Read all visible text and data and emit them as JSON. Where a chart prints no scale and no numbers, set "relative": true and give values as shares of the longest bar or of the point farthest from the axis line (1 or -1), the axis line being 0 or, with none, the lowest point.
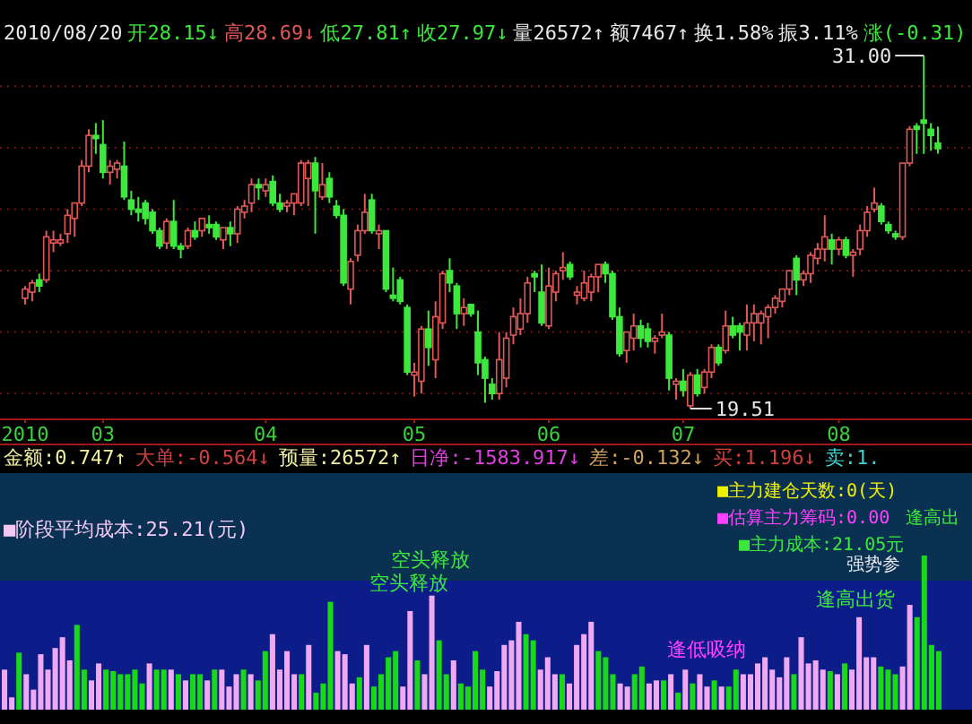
{
  "chart_data": [
    {
      "type": "candlestick",
      "categories": [
        "2010",
        null,
        null,
        null,
        null,
        null,
        null,
        null,
        null,
        null,
        null,
        "03",
        null,
        null,
        null,
        null,
        null,
        null,
        null,
        null,
        null,
        null,
        null,
        null,
        null,
        null,
        null,
        null,
        null,
        null,
        null,
        null,
        null,
        null,
        "04",
        null,
        null,
        null,
        null,
        null,
        null,
        null,
        null,
        null,
        null,
        null,
        null,
        null,
        null,
        null,
        null,
        null,
        null,
        null,
        null,
        "05",
        null,
        null,
        null,
        null,
        null,
        null,
        null,
        null,
        null,
        null,
        null,
        null,
        null,
        null,
        null,
        null,
        null,
        null,
        "06",
        null,
        null,
        null,
        null,
        null,
        null,
        null,
        null,
        null,
        null,
        null,
        null,
        null,
        null,
        null,
        null,
        null,
        null,
        "07",
        null,
        null,
        null,
        null,
        null,
        null,
        null,
        null,
        null,
        null,
        null,
        null,
        null,
        null,
        null,
        null,
        null,
        null,
        null,
        null,
        null,
        "08",
        null,
        null,
        null,
        null,
        null,
        null,
        null,
        null,
        null,
        null,
        null,
        null,
        null,
        null
      ],
      "ohlc": [
        [
          23.1,
          23.5,
          22.9,
          23.4
        ],
        [
          23.3,
          23.7,
          23.0,
          23.6
        ],
        [
          23.7,
          23.9,
          23.3,
          23.5
        ],
        [
          23.7,
          25.3,
          23.6,
          25.1
        ],
        [
          24.9,
          25.3,
          24.6,
          25.0
        ],
        [
          24.9,
          25.2,
          24.8,
          25.0
        ],
        [
          25.2,
          26.0,
          24.9,
          25.8
        ],
        [
          25.7,
          26.2,
          25.1,
          26.2
        ],
        [
          26.2,
          27.6,
          26.1,
          27.4
        ],
        [
          27.4,
          28.6,
          27.2,
          28.4
        ],
        [
          28.4,
          28.8,
          27.8,
          28.3
        ],
        [
          28.1,
          28.9,
          27.0,
          27.2
        ],
        [
          27.2,
          27.6,
          26.8,
          27.4
        ],
        [
          27.3,
          27.6,
          27.0,
          27.5
        ],
        [
          27.4,
          28.2,
          26.3,
          26.4
        ],
        [
          26.3,
          26.6,
          25.8,
          26.0
        ],
        [
          26.0,
          26.4,
          25.6,
          25.9
        ],
        [
          26.2,
          26.3,
          25.5,
          25.7
        ],
        [
          25.9,
          26.0,
          25.2,
          25.3
        ],
        [
          25.3,
          25.4,
          24.7,
          24.8
        ],
        [
          24.9,
          25.7,
          24.7,
          25.6
        ],
        [
          25.6,
          26.3,
          24.7,
          24.8
        ],
        [
          24.8,
          24.9,
          24.4,
          24.7
        ],
        [
          24.8,
          25.4,
          24.7,
          25.3
        ],
        [
          25.3,
          25.6,
          25.0,
          25.1
        ],
        [
          25.3,
          25.7,
          25.1,
          25.7
        ],
        [
          25.5,
          25.8,
          25.2,
          25.4
        ],
        [
          25.5,
          25.6,
          25.0,
          25.1
        ],
        [
          25.0,
          25.4,
          24.7,
          25.4
        ],
        [
          25.4,
          25.6,
          24.8,
          25.2
        ],
        [
          25.2,
          26.1,
          24.9,
          26.0
        ],
        [
          25.9,
          26.3,
          25.7,
          26.1
        ],
        [
          26.2,
          27.0,
          25.9,
          26.8
        ],
        [
          26.8,
          27.0,
          26.3,
          26.7
        ],
        [
          26.6,
          27.0,
          26.4,
          26.8
        ],
        [
          26.9,
          27.1,
          26.1,
          26.2
        ],
        [
          26.2,
          26.5,
          25.9,
          26.0
        ],
        [
          26.1,
          26.3,
          25.9,
          26.2
        ],
        [
          26.2,
          26.5,
          25.8,
          26.5
        ],
        [
          26.2,
          27.6,
          26.1,
          27.5
        ],
        [
          27.0,
          27.6,
          26.1,
          27.5
        ],
        [
          27.5,
          27.7,
          25.2,
          26.6
        ],
        [
          26.4,
          27.5,
          26.3,
          26.8
        ],
        [
          27.0,
          27.2,
          26.2,
          26.4
        ],
        [
          26.1,
          26.3,
          25.7,
          25.8
        ],
        [
          25.8,
          26.0,
          23.5,
          23.6
        ],
        [
          23.4,
          24.4,
          22.9,
          24.3
        ],
        [
          24.5,
          25.5,
          24.3,
          25.3
        ],
        [
          25.3,
          26.5,
          25.2,
          25.9
        ],
        [
          26.3,
          26.5,
          25.2,
          25.3
        ],
        [
          25.2,
          25.5,
          24.7,
          25.3
        ],
        [
          25.3,
          25.3,
          23.3,
          23.4
        ],
        [
          23.2,
          24.1,
          23.0,
          23.1
        ],
        [
          23.7,
          23.8,
          22.9,
          23.0
        ],
        [
          22.8,
          22.9,
          20.6,
          20.7
        ],
        [
          20.6,
          21.0,
          19.9,
          20.7
        ],
        [
          20.4,
          22.2,
          20.0,
          22.1
        ],
        [
          22.1,
          22.7,
          20.9,
          21.5
        ],
        [
          21.1,
          23.0,
          20.5,
          22.5
        ],
        [
          22.3,
          24.0,
          22.1,
          23.9
        ],
        [
          24.0,
          24.4,
          23.3,
          23.6
        ],
        [
          23.5,
          23.6,
          22.1,
          22.6
        ],
        [
          22.6,
          23.1,
          22.2,
          22.8
        ],
        [
          22.9,
          22.9,
          22.5,
          22.6
        ],
        [
          22.0,
          22.7,
          20.6,
          21.0
        ],
        [
          21.1,
          21.2,
          19.7,
          20.5
        ],
        [
          20.3,
          20.5,
          19.8,
          20.0
        ],
        [
          20.0,
          22.0,
          19.8,
          21.1
        ],
        [
          20.5,
          22.0,
          20.2,
          21.8
        ],
        [
          21.9,
          22.8,
          21.6,
          22.5
        ],
        [
          22.1,
          23.1,
          21.9,
          22.6
        ],
        [
          22.6,
          23.8,
          22.3,
          23.6
        ],
        [
          23.9,
          24.0,
          23.3,
          23.8
        ],
        [
          23.3,
          24.2,
          22.2,
          22.3
        ],
        [
          22.2,
          24.1,
          22.1,
          23.5
        ],
        [
          23.3,
          24.0,
          23.0,
          23.9
        ],
        [
          24.0,
          24.6,
          23.7,
          24.1
        ],
        [
          24.2,
          24.3,
          23.7,
          23.8
        ],
        [
          23.2,
          23.5,
          22.9,
          23.3
        ],
        [
          23.1,
          24.0,
          23.0,
          23.6
        ],
        [
          23.3,
          23.9,
          23.0,
          23.8
        ],
        [
          23.8,
          24.2,
          23.3,
          24.2
        ],
        [
          24.2,
          24.3,
          23.6,
          23.9
        ],
        [
          23.9,
          24.0,
          22.4,
          22.5
        ],
        [
          22.5,
          22.8,
          21.2,
          21.3
        ],
        [
          21.4,
          22.0,
          21.0,
          22.0
        ],
        [
          21.8,
          22.6,
          21.4,
          22.2
        ],
        [
          22.2,
          22.4,
          21.5,
          21.8
        ],
        [
          22.1,
          22.3,
          21.5,
          21.7
        ],
        [
          21.7,
          21.9,
          21.3,
          21.8
        ],
        [
          21.9,
          22.6,
          21.8,
          22.0
        ],
        [
          21.9,
          22.0,
          20.1,
          20.5
        ],
        [
          20.3,
          20.5,
          19.8,
          20.4
        ],
        [
          20.4,
          20.8,
          19.9,
          20.1
        ],
        [
          19.6,
          20.7,
          19.51,
          20.6
        ],
        [
          20.6,
          20.8,
          19.9,
          20.0
        ],
        [
          20.2,
          20.8,
          20.0,
          20.7
        ],
        [
          20.7,
          21.6,
          20.5,
          21.5
        ],
        [
          21.5,
          21.6,
          20.9,
          21.0
        ],
        [
          21.4,
          22.7,
          21.3,
          22.2
        ],
        [
          22.2,
          22.5,
          21.8,
          21.9
        ],
        [
          22.2,
          22.3,
          21.4,
          22.0
        ],
        [
          21.9,
          22.9,
          21.4,
          22.3
        ],
        [
          22.3,
          22.9,
          21.7,
          22.6
        ],
        [
          22.3,
          22.7,
          21.6,
          22.6
        ],
        [
          22.5,
          22.9,
          21.8,
          22.8
        ],
        [
          22.8,
          23.2,
          22.6,
          23.1
        ],
        [
          23.0,
          23.4,
          22.8,
          23.4
        ],
        [
          23.4,
          24.0,
          23.2,
          24.0
        ],
        [
          24.4,
          24.5,
          23.2,
          23.7
        ],
        [
          23.7,
          24.0,
          23.5,
          23.9
        ],
        [
          23.9,
          24.6,
          23.6,
          24.5
        ],
        [
          24.4,
          24.9,
          24.2,
          24.7
        ],
        [
          24.7,
          25.8,
          24.3,
          25.1
        ],
        [
          25.0,
          25.2,
          24.2,
          24.7
        ],
        [
          24.7,
          25.1,
          24.5,
          25.0
        ],
        [
          25.0,
          25.1,
          24.4,
          24.5
        ],
        [
          24.5,
          24.7,
          23.8,
          24.6
        ],
        [
          24.7,
          25.5,
          24.5,
          25.3
        ],
        [
          25.3,
          26.1,
          25.1,
          25.9
        ],
        [
          26.0,
          26.7,
          25.9,
          26.2
        ],
        [
          26.1,
          26.2,
          25.5,
          25.6
        ],
        [
          25.5,
          25.6,
          25.2,
          25.3
        ],
        [
          25.2,
          25.3,
          25.0,
          25.1
        ],
        [
          25.1,
          27.5,
          25.0,
          27.5
        ],
        [
          27.5,
          28.7,
          27.4,
          28.6
        ],
        [
          28.7,
          28.8,
          27.8,
          28.6
        ],
        [
          28.9,
          31.0,
          27.8,
          28.8
        ],
        [
          28.6,
          28.8,
          27.9,
          28.4
        ],
        [
          28.15,
          28.69,
          27.81,
          27.97
        ]
      ],
      "colors": [
        "#e05858",
        "#e05858",
        "#3ce83c",
        "#e05858",
        "#e05858",
        "#e05858",
        "#e05858",
        "#e05858",
        "#e05858",
        "#e05858",
        "#3ce83c",
        "#3ce83c",
        "#e05858",
        "#e05858",
        "#3ce83c",
        "#3ce83c",
        "#3ce83c",
        "#3ce83c",
        "#3ce83c",
        "#3ce83c",
        "#e05858",
        "#3ce83c",
        "#3ce83c",
        "#e05858",
        "#3ce83c",
        "#e05858",
        "#3ce83c",
        "#3ce83c",
        "#e05858",
        "#3ce83c",
        "#e05858",
        "#e05858",
        "#e05858",
        "#3ce83c",
        "#e05858",
        "#3ce83c",
        "#3ce83c",
        "#e05858",
        "#e05858",
        "#e05858",
        "#e05858",
        "#3ce83c",
        "#e05858",
        "#3ce83c",
        "#3ce83c",
        "#3ce83c",
        "#e05858",
        "#e05858",
        "#e05858",
        "#3ce83c",
        "#e05858",
        "#3ce83c",
        "#3ce83c",
        "#3ce83c",
        "#3ce83c",
        "#e05858",
        "#e05858",
        "#3ce83c",
        "#e05858",
        "#e05858",
        "#3ce83c",
        "#3ce83c",
        "#e05858",
        "#3ce83c",
        "#3ce83c",
        "#3ce83c",
        "#3ce83c",
        "#e05858",
        "#e05858",
        "#e05858",
        "#e05858",
        "#e05858",
        "#3ce83c",
        "#3ce83c",
        "#e05858",
        "#e05858",
        "#e05858",
        "#3ce83c",
        "#e05858",
        "#e05858",
        "#e05858",
        "#e05858",
        "#3ce83c",
        "#3ce83c",
        "#3ce83c",
        "#e05858",
        "#e05858",
        "#3ce83c",
        "#3ce83c",
        "#e05858",
        "#e05858",
        "#3ce83c",
        "#e05858",
        "#3ce83c",
        "#e05858",
        "#3ce83c",
        "#e05858",
        "#e05858",
        "#3ce83c",
        "#e05858",
        "#3ce83c",
        "#3ce83c",
        "#e05858",
        "#e05858",
        "#e05858",
        "#e05858",
        "#e05858",
        "#e05858",
        "#e05858",
        "#3ce83c",
        "#e05858",
        "#e05858",
        "#e05858",
        "#e05858",
        "#3ce83c",
        "#e05858",
        "#3ce83c",
        "#e05858",
        "#e05858",
        "#e05858",
        "#e05858",
        "#3ce83c",
        "#3ce83c",
        "#3ce83c",
        "#e05858",
        "#e05858",
        "#3ce83c",
        "#3ce83c",
        "#3ce83c",
        "#3ce83c"
      ],
      "yticks": [
        {
          "value": 20,
          "label": null
        },
        {
          "value": 22,
          "label": null
        },
        {
          "value": 24,
          "label": null
        },
        {
          "value": 26,
          "label": null
        },
        {
          "value": 28,
          "label": null
        },
        {
          "value": 30,
          "label": null
        }
      ],
      "grid": "y",
      "annotations": [
        "2010/08/20",
        "开28.15↓",
        "高28.69↓",
        "低27.81↑",
        "收27.97↓",
        "量26572↑",
        "额7467↑",
        "换1.58%",
        "振3.11%",
        "涨(-0.31)",
        "31.00",
        "19.51"
      ]
    },
    {
      "type": "bar",
      "relative": true,
      "categories": [
        null,
        null,
        null,
        null,
        null,
        null,
        null,
        null,
        null,
        null,
        null,
        null,
        null,
        null,
        null,
        null,
        null,
        null,
        null,
        null,
        null,
        null,
        null,
        null,
        null,
        null,
        null,
        null,
        null,
        null,
        null,
        null,
        null,
        null,
        null,
        null,
        null,
        null,
        null,
        null,
        null,
        null,
        null,
        null,
        null,
        null,
        null,
        null,
        null,
        null,
        null,
        null,
        null,
        null,
        null,
        null,
        null,
        null,
        null,
        null,
        null,
        null,
        null,
        null,
        null,
        null,
        null,
        null,
        null,
        null,
        null,
        null,
        null,
        null,
        null,
        null,
        null,
        null,
        null,
        null,
        null,
        null,
        null,
        null,
        null,
        null,
        null,
        null,
        null,
        null,
        null,
        null,
        null,
        null,
        null,
        null,
        null,
        null,
        null,
        null,
        null,
        null,
        null,
        null,
        null,
        null,
        null,
        null,
        null,
        null,
        null,
        null,
        null,
        null,
        null,
        null,
        null,
        null,
        null,
        null,
        null,
        null,
        null,
        null,
        null,
        null,
        null,
        null,
        null,
        null
      ],
      "values": [
        0.26,
        0.08,
        0.37,
        0.23,
        0.13,
        0.36,
        0.26,
        0.4,
        0.47,
        0.32,
        0.55,
        0.26,
        0.19,
        0.3,
        0.26,
        0.25,
        0.23,
        0.23,
        0.26,
        0.17,
        0.3,
        0.26,
        0.26,
        0.26,
        0.23,
        0.19,
        0.23,
        0.23,
        0.19,
        0.26,
        0.26,
        0.15,
        0.23,
        0.26,
        0.23,
        0.19,
        0.38,
        0.49,
        0.26,
        0.38,
        0.23,
        0.23,
        0.42,
        0.11,
        0.17,
        0.7,
        0.38,
        0.36,
        0.17,
        0.21,
        0.42,
        0.15,
        0.23,
        0.34,
        0.38,
        0.15,
        0.64,
        0.32,
        0.23,
        0.74,
        0.45,
        0.23,
        0.32,
        0.17,
        0.15,
        0.38,
        0.26,
        0.15,
        0.25,
        0.42,
        0.45,
        0.57,
        0.49,
        0.45,
        0.26,
        0.34,
        0.23,
        0.23,
        0.17,
        0.42,
        0.49,
        0.57,
        0.38,
        0.34,
        0.23,
        0.17,
        0.15,
        0.23,
        0.28,
        0.17,
        0.19,
        0.19,
        0.23,
        0.11,
        0.26,
        0.17,
        0.23,
        0.15,
        0.19,
        0.15,
        0.15,
        0.26,
        0.23,
        0.23,
        0.3,
        0.34,
        0.26,
        0.21,
        0.34,
        0.23,
        0.47,
        0.3,
        0.32,
        0.26,
        0.25,
        0.23,
        0.3,
        0.26,
        0.6,
        0.34,
        0.34,
        0.28,
        0.26,
        0.23,
        0.28,
        0.68,
        0.6,
        1,
        0.42,
        0.38
      ],
      "colors": [
        "#f0a8f0",
        "#f0a8f0",
        "#18d818",
        "#f0a8f0",
        "#f0a8f0",
        "#f0a8f0",
        "#f0a8f0",
        "#f0a8f0",
        "#f0a8f0",
        "#f0a8f0",
        "#18d818",
        "#18d818",
        "#f0a8f0",
        "#f0a8f0",
        "#18d818",
        "#18d818",
        "#18d818",
        "#18d818",
        "#18d818",
        "#18d818",
        "#f0a8f0",
        "#18d818",
        "#18d818",
        "#f0a8f0",
        "#18d818",
        "#f0a8f0",
        "#18d818",
        "#18d818",
        "#f0a8f0",
        "#18d818",
        "#f0a8f0",
        "#f0a8f0",
        "#f0a8f0",
        "#18d818",
        "#f0a8f0",
        "#18d818",
        "#18d818",
        "#f0a8f0",
        "#f0a8f0",
        "#f0a8f0",
        "#f0a8f0",
        "#18d818",
        "#f0a8f0",
        "#18d818",
        "#18d818",
        "#18d818",
        "#f0a8f0",
        "#f0a8f0",
        "#f0a8f0",
        "#18d818",
        "#f0a8f0",
        "#18d818",
        "#18d818",
        "#18d818",
        "#18d818",
        "#f0a8f0",
        "#f0a8f0",
        "#18d818",
        "#f0a8f0",
        "#f0a8f0",
        "#18d818",
        "#18d818",
        "#f0a8f0",
        "#18d818",
        "#18d818",
        "#18d818",
        "#18d818",
        "#f0a8f0",
        "#f0a8f0",
        "#f0a8f0",
        "#f0a8f0",
        "#f0a8f0",
        "#18d818",
        "#18d818",
        "#f0a8f0",
        "#f0a8f0",
        "#f0a8f0",
        "#18d818",
        "#f0a8f0",
        "#f0a8f0",
        "#f0a8f0",
        "#f0a8f0",
        "#18d818",
        "#18d818",
        "#18d818",
        "#f0a8f0",
        "#f0a8f0",
        "#18d818",
        "#18d818",
        "#f0a8f0",
        "#f0a8f0",
        "#18d818",
        "#f0a8f0",
        "#18d818",
        "#f0a8f0",
        "#18d818",
        "#f0a8f0",
        "#f0a8f0",
        "#18d818",
        "#f0a8f0",
        "#18d818",
        "#18d818",
        "#f0a8f0",
        "#f0a8f0",
        "#f0a8f0",
        "#f0a8f0",
        "#f0a8f0",
        "#f0a8f0",
        "#f0a8f0",
        "#18d818",
        "#f0a8f0",
        "#f0a8f0",
        "#f0a8f0",
        "#f0a8f0",
        "#18d818",
        "#f0a8f0",
        "#18d818",
        "#f0a8f0",
        "#f0a8f0",
        "#f0a8f0",
        "#f0a8f0",
        "#18d818",
        "#18d818",
        "#18d818",
        "#f0a8f0",
        "#f0a8f0",
        "#18d818",
        "#18d818",
        "#18d818",
        "#18d818"
      ],
      "annotations": [
        "金额:0.747↑",
        "大单:-0.564↓",
        "预量:26572↑",
        "日净:-1583.917↓",
        "差:-0.132↓",
        "买:1.196↓",
        "卖:1.",
        "■主力建仓天数:0(天)",
        "■估算主力筹码:0.00",
        "逢高出",
        "■主力成本:21.05元",
        "■阶段平均成本:25.21(元)",
        "空头释放",
        "空头释放",
        "逢高出货",
        "强势参",
        "逢低吸纳"
      ]
    }
  ]
}
